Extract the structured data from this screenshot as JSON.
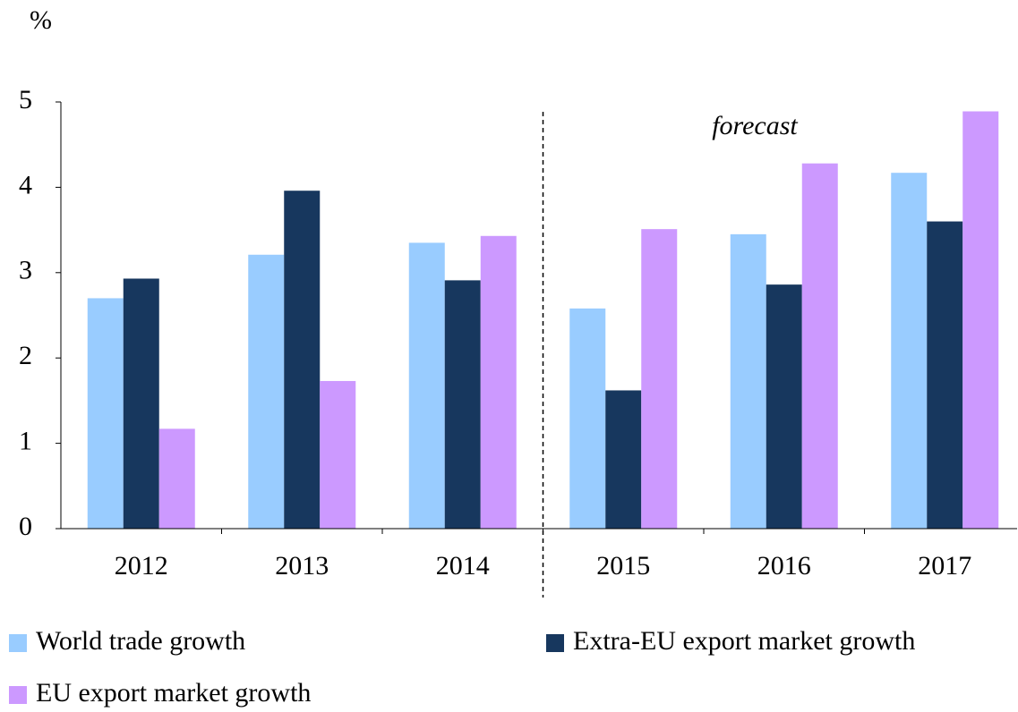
{
  "chart_data": {
    "type": "bar",
    "y_label": "%",
    "annotation": "forecast",
    "categories": [
      "2012",
      "2013",
      "2014",
      "2015",
      "2016",
      "2017"
    ],
    "series": [
      {
        "name": "World trade growth",
        "color": "#99ccff",
        "values": [
          2.7,
          3.21,
          3.35,
          2.58,
          3.45,
          4.17
        ]
      },
      {
        "name": "Extra-EU export market growth",
        "color": "#17375e",
        "values": [
          2.93,
          3.96,
          2.91,
          1.62,
          2.86,
          3.6
        ]
      },
      {
        "name": "EU export market growth",
        "color": "#cc99ff",
        "values": [
          1.17,
          1.73,
          3.43,
          3.51,
          4.28,
          4.89
        ]
      }
    ],
    "ylim": [
      0,
      5
    ],
    "yticks": [
      0,
      1,
      2,
      3,
      4,
      5
    ]
  }
}
